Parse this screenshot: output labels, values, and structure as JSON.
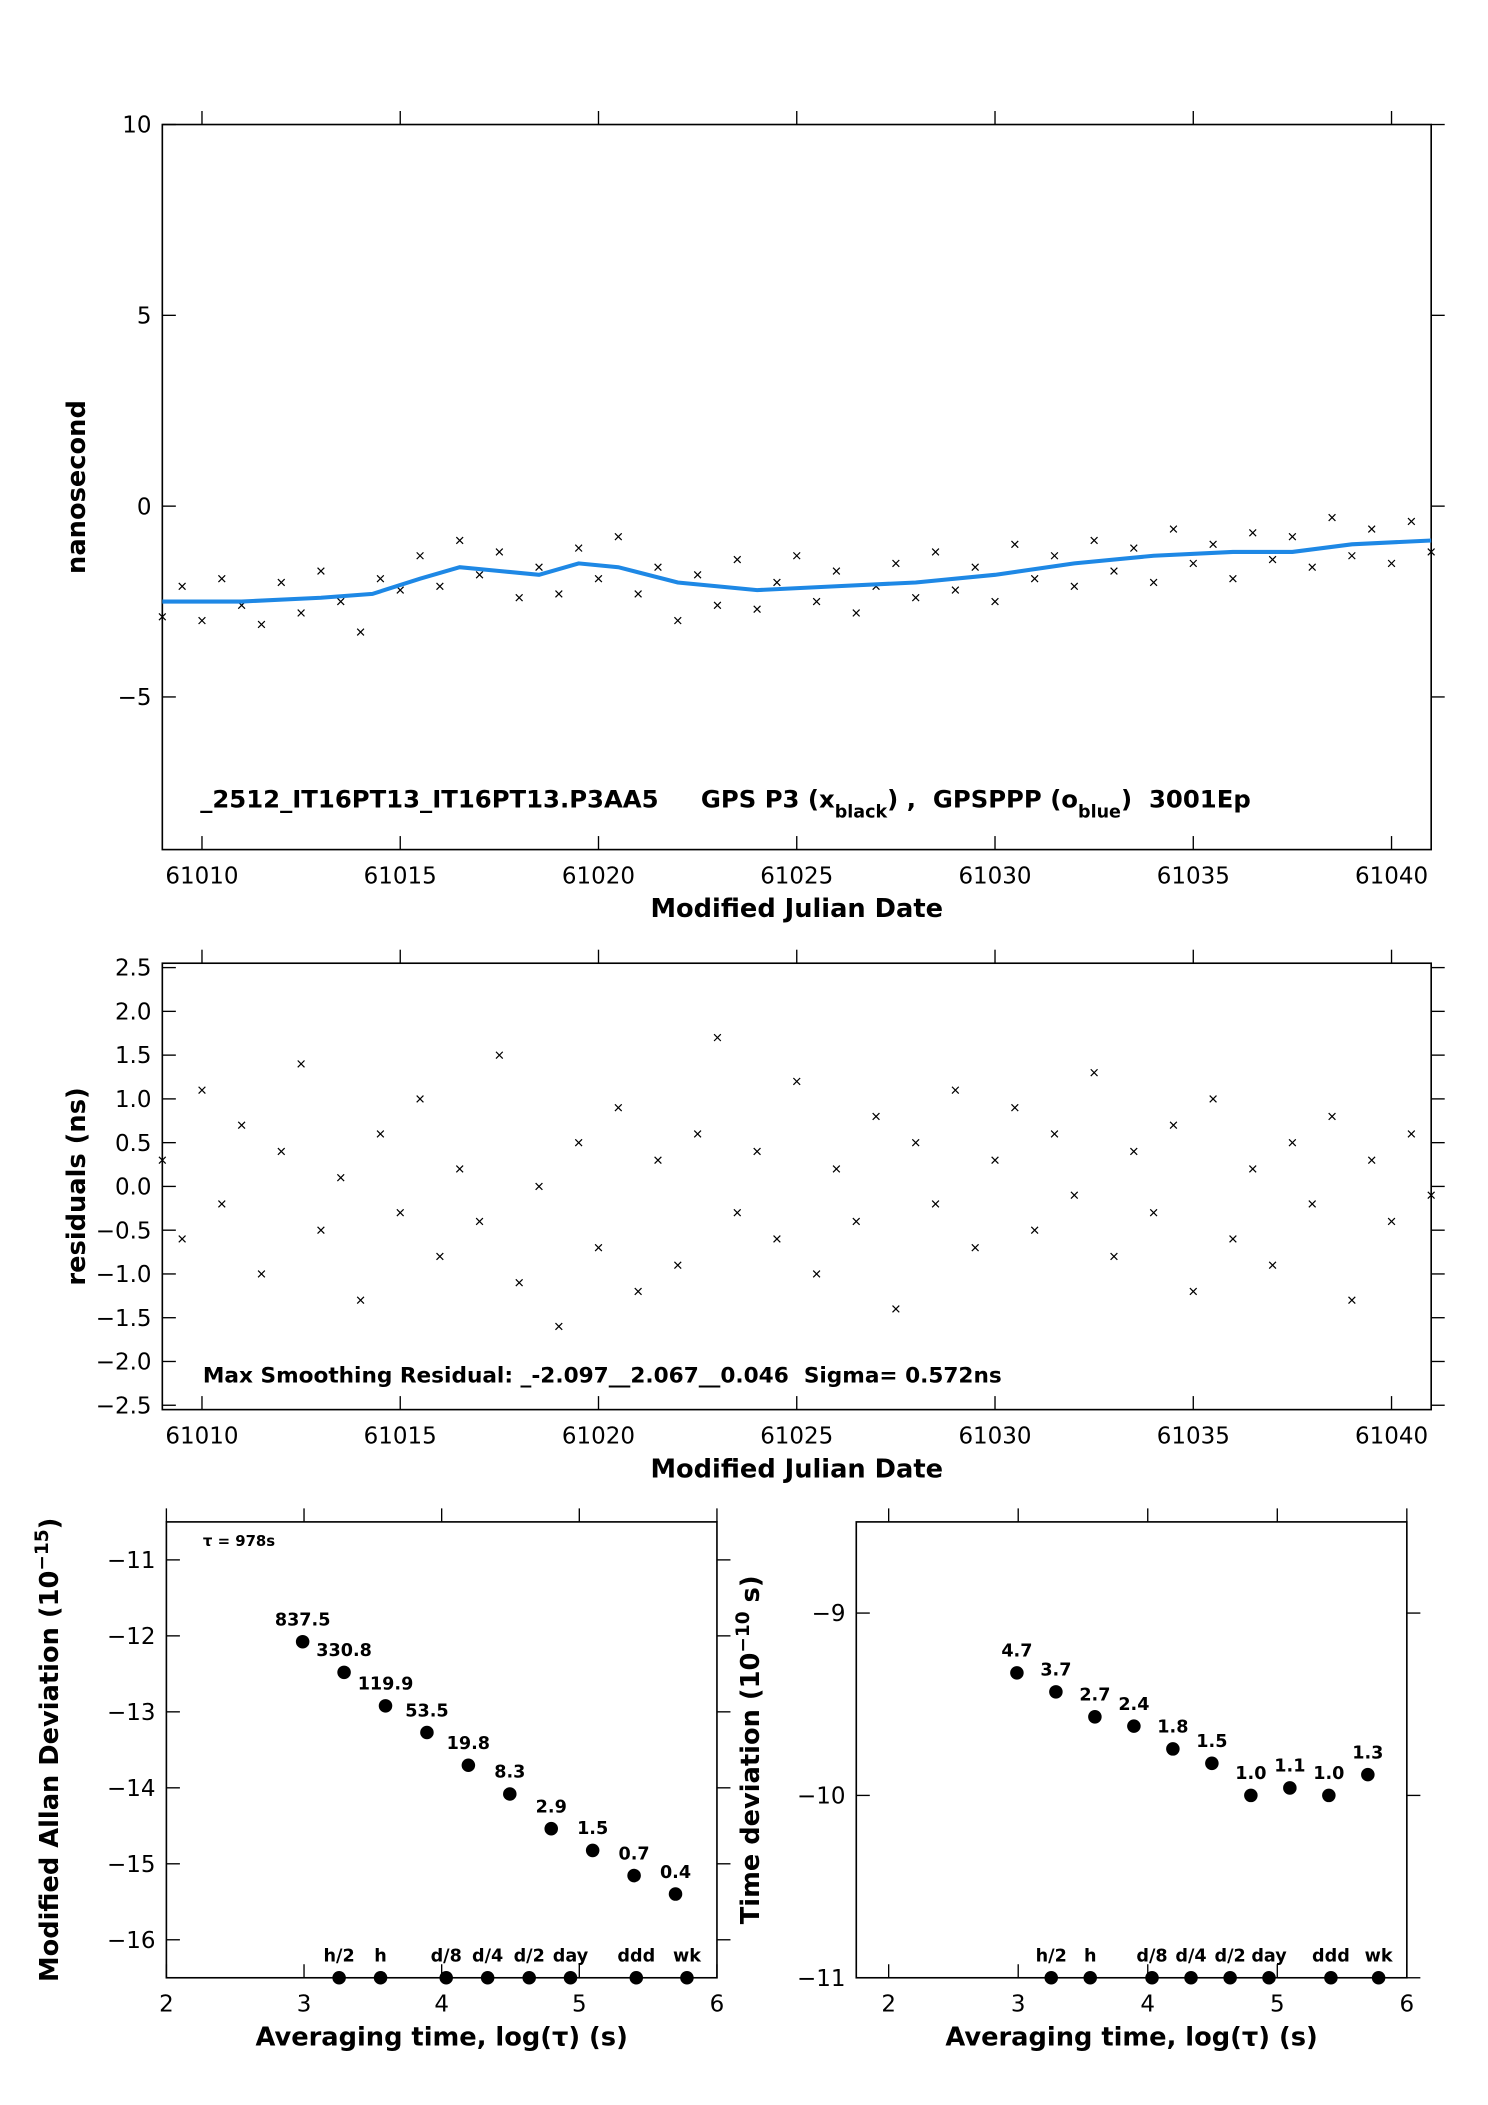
{
  "chart_data": [
    {
      "type": "scatter",
      "xlim": [
        61009,
        61041
      ],
      "ylim": [
        -9,
        10
      ],
      "xticks": [
        61010,
        61015,
        61020,
        61025,
        61030,
        61035,
        61040
      ],
      "yticks": [
        {
          "value": -5,
          "label": "−5"
        },
        0,
        5,
        10
      ],
      "xlabel": "Modified Julian Date",
      "ylabel": [
        {
          "text": "nanosecond"
        }
      ],
      "annotation": [
        {
          "text": "_2512_IT16PT13_IT16PT13.P3AA5     GPS P3 (x"
        },
        {
          "text": "black",
          "sub": true
        },
        {
          "text": ") ,  GPSPPP (o"
        },
        {
          "text": "blue",
          "sub": true
        },
        {
          "text": ")  3001Ep"
        }
      ],
      "series": [
        {
          "color": "#000000",
          "style": "x",
          "x": [
            61009,
            61009.5,
            61010,
            61010.5,
            61011,
            61011.5,
            61012,
            61012.5,
            61013,
            61013.5,
            61014,
            61014.5,
            61015,
            61015.5,
            61016,
            61016.5,
            61017,
            61017.5,
            61018,
            61018.5,
            61019,
            61019.5,
            61020,
            61020.5,
            61021,
            61021.5,
            61022,
            61022.5,
            61023,
            61023.5,
            61024,
            61024.5,
            61025,
            61025.5,
            61026,
            61026.5,
            61027,
            61027.5,
            61028,
            61028.5,
            61029,
            61029.5,
            61030,
            61030.5,
            61031,
            61031.5,
            61032,
            61032.5,
            61033,
            61033.5,
            61034,
            61034.5,
            61035,
            61035.5,
            61036,
            61036.5,
            61037,
            61037.5,
            61038,
            61038.5,
            61039,
            61039.5,
            61040,
            61040.5,
            61041
          ],
          "values": [
            -2.9,
            -2.1,
            -3.0,
            -1.9,
            -2.6,
            -3.1,
            -2.0,
            -2.8,
            -1.7,
            -2.5,
            -3.3,
            -1.9,
            -2.2,
            -1.3,
            -2.1,
            -0.9,
            -1.8,
            -1.2,
            -2.4,
            -1.6,
            -2.3,
            -1.1,
            -1.9,
            -0.8,
            -2.3,
            -1.6,
            -3.0,
            -1.8,
            -2.6,
            -1.4,
            -2.7,
            -2.0,
            -1.3,
            -2.5,
            -1.7,
            -2.8,
            -2.1,
            -1.5,
            -2.4,
            -1.2,
            -2.2,
            -1.6,
            -2.5,
            -1.0,
            -1.9,
            -1.3,
            -2.1,
            -0.9,
            -1.7,
            -1.1,
            -2.0,
            -0.6,
            -1.5,
            -1.0,
            -1.9,
            -0.7,
            -1.4,
            -0.8,
            -1.6,
            -0.3,
            -1.3,
            -0.6,
            -1.5,
            -0.4,
            -1.2
          ]
        },
        {
          "color": "#1e88e5",
          "style": "line",
          "x": [
            61009,
            61011,
            61013,
            61014.3,
            61015.5,
            61016.5,
            61017.5,
            61018.5,
            61019.5,
            61020.5,
            61022,
            61024,
            61026,
            61028,
            61030,
            61032,
            61034,
            61036,
            61037.5,
            61039,
            61041
          ],
          "values": [
            -2.5,
            -2.5,
            -2.4,
            -2.3,
            -1.9,
            -1.6,
            -1.7,
            -1.8,
            -1.5,
            -1.6,
            -2.0,
            -2.2,
            -2.1,
            -2.0,
            -1.8,
            -1.5,
            -1.3,
            -1.2,
            -1.2,
            -1.0,
            -0.9
          ]
        }
      ]
    },
    {
      "type": "scatter",
      "xlim": [
        61009,
        61041
      ],
      "ylim": [
        -2.55,
        2.55
      ],
      "xticks": [
        61010,
        61015,
        61020,
        61025,
        61030,
        61035,
        61040
      ],
      "yticks": [
        {
          "value": -2.5,
          "label": "−2.5"
        },
        {
          "value": -2,
          "label": "−2.0"
        },
        {
          "value": -1.5,
          "label": "−1.5"
        },
        {
          "value": -1,
          "label": "−1.0"
        },
        {
          "value": -0.5,
          "label": "−0.5"
        },
        {
          "value": 0,
          "label": "0.0"
        },
        0.5,
        {
          "value": 1,
          "label": "1.0"
        },
        1.5,
        {
          "value": 2,
          "label": "2.0"
        },
        2.5
      ],
      "xlabel": "Modified Julian Date",
      "ylabel": [
        {
          "text": "residuals (ns)"
        }
      ],
      "annotation": [
        {
          "text": "Max Smoothing Residual: _-2.097__2.067__0.046  Sigma= 0.572ns"
        }
      ],
      "series": [
        {
          "color": "#000000",
          "style": "x",
          "x": [
            61009,
            61009.5,
            61010,
            61010.5,
            61011,
            61011.5,
            61012,
            61012.5,
            61013,
            61013.5,
            61014,
            61014.5,
            61015,
            61015.5,
            61016,
            61016.5,
            61017,
            61017.5,
            61018,
            61018.5,
            61019,
            61019.5,
            61020,
            61020.5,
            61021,
            61021.5,
            61022,
            61022.5,
            61023,
            61023.5,
            61024,
            61024.5,
            61025,
            61025.5,
            61026,
            61026.5,
            61027,
            61027.5,
            61028,
            61028.5,
            61029,
            61029.5,
            61030,
            61030.5,
            61031,
            61031.5,
            61032,
            61032.5,
            61033,
            61033.5,
            61034,
            61034.5,
            61035,
            61035.5,
            61036,
            61036.5,
            61037,
            61037.5,
            61038,
            61038.5,
            61039,
            61039.5,
            61040,
            61040.5,
            61041
          ],
          "values": [
            0.3,
            -0.6,
            1.1,
            -0.2,
            0.7,
            -1.0,
            0.4,
            1.4,
            -0.5,
            0.1,
            -1.3,
            0.6,
            -0.3,
            1.0,
            -0.8,
            0.2,
            -0.4,
            1.5,
            -1.1,
            0.0,
            -1.6,
            0.5,
            -0.7,
            0.9,
            -1.2,
            0.3,
            -0.9,
            0.6,
            1.7,
            -0.3,
            0.4,
            -0.6,
            1.2,
            -1.0,
            0.2,
            -0.4,
            0.8,
            -1.4,
            0.5,
            -0.2,
            1.1,
            -0.7,
            0.3,
            0.9,
            -0.5,
            0.6,
            -0.1,
            1.3,
            -0.8,
            0.4,
            -0.3,
            0.7,
            -1.2,
            1.0,
            -0.6,
            0.2,
            -0.9,
            0.5,
            -0.2,
            0.8,
            -1.3,
            0.3,
            -0.4,
            0.6,
            -0.1
          ]
        }
      ]
    },
    {
      "type": "scatter",
      "xlim": [
        2,
        6
      ],
      "ylim": [
        -16.5,
        -10.5
      ],
      "xticks": [
        2,
        3,
        4,
        5,
        6
      ],
      "yticks": [
        {
          "value": -16,
          "label": "−16"
        },
        {
          "value": -15,
          "label": "−15"
        },
        {
          "value": -14,
          "label": "−14"
        },
        {
          "value": -13,
          "label": "−13"
        },
        {
          "value": -12,
          "label": "−12"
        },
        {
          "value": -11,
          "label": "−11"
        }
      ],
      "xlabel": "Averaging time, log(τ) (s)",
      "ylabel": [
        {
          "text": "Modified Allan Deviation (10"
        },
        {
          "text": "−15",
          "sup": true
        },
        {
          "text": ")"
        }
      ],
      "annotation": [
        {
          "text": "τ = 978s"
        }
      ],
      "series": [
        {
          "color": "#000000",
          "style": "dot",
          "label_color": "#ff0000",
          "x": [
            2.99,
            3.291,
            3.592,
            3.893,
            4.194,
            4.495,
            4.796,
            5.097,
            5.398,
            5.699
          ],
          "values": [
            -12.077,
            -12.48,
            -12.921,
            -13.272,
            -13.703,
            -14.081,
            -14.538,
            -14.824,
            -15.155,
            -15.398
          ],
          "value_labels": [
            "837.5",
            "330.8",
            "119.9",
            "53.5",
            "19.8",
            "8.3",
            "2.9",
            "1.5",
            "0.7",
            "0.4"
          ]
        },
        {
          "color": "#000000",
          "style": "dot",
          "label_color": "#ff0000",
          "x": [
            3.255,
            3.556,
            4.033,
            4.334,
            4.636,
            4.936,
            5.414,
            5.782
          ],
          "values": [
            -16.5,
            -16.5,
            -16.5,
            -16.5,
            -16.5,
            -16.5,
            -16.5,
            -16.5
          ],
          "value_labels": [
            "h/2",
            "h",
            "d/8",
            "d/4",
            "d/2",
            "day",
            "ddd",
            "wk"
          ]
        }
      ]
    },
    {
      "type": "scatter",
      "xlim": [
        1.75,
        6
      ],
      "ylim": [
        -11,
        -8.5
      ],
      "xticks": [
        2,
        3,
        4,
        5,
        6
      ],
      "yticks": [
        {
          "value": -11,
          "label": "−11"
        },
        {
          "value": -10,
          "label": "−10"
        },
        {
          "value": -9,
          "label": "−9"
        }
      ],
      "xlabel": "Averaging time, log(τ) (s)",
      "ylabel": [
        {
          "text": "Time deviation (10"
        },
        {
          "text": "−10",
          "sup": true
        },
        {
          "text": " s)"
        }
      ],
      "series": [
        {
          "color": "#000000",
          "style": "dot",
          "label_color": "#ff0000",
          "x": [
            2.99,
            3.291,
            3.592,
            3.893,
            4.194,
            4.495,
            4.796,
            5.097,
            5.398,
            5.699
          ],
          "values": [
            -9.328,
            -9.432,
            -9.569,
            -9.62,
            -9.745,
            -9.824,
            -10,
            -9.959,
            -10,
            -9.886
          ],
          "value_labels": [
            "4.7",
            "3.7",
            "2.7",
            "2.4",
            "1.8",
            "1.5",
            "1.0",
            "1.1",
            "1.0",
            "1.3"
          ]
        },
        {
          "color": "#000000",
          "style": "dot",
          "label_color": "#ff0000",
          "x": [
            3.255,
            3.556,
            4.033,
            4.334,
            4.636,
            4.936,
            5.414,
            5.782
          ],
          "values": [
            -11,
            -11,
            -11,
            -11,
            -11,
            -11,
            -11,
            -11
          ],
          "value_labels": [
            "h/2",
            "h",
            "d/8",
            "d/4",
            "d/2",
            "day",
            "ddd",
            "wk"
          ]
        }
      ]
    }
  ]
}
